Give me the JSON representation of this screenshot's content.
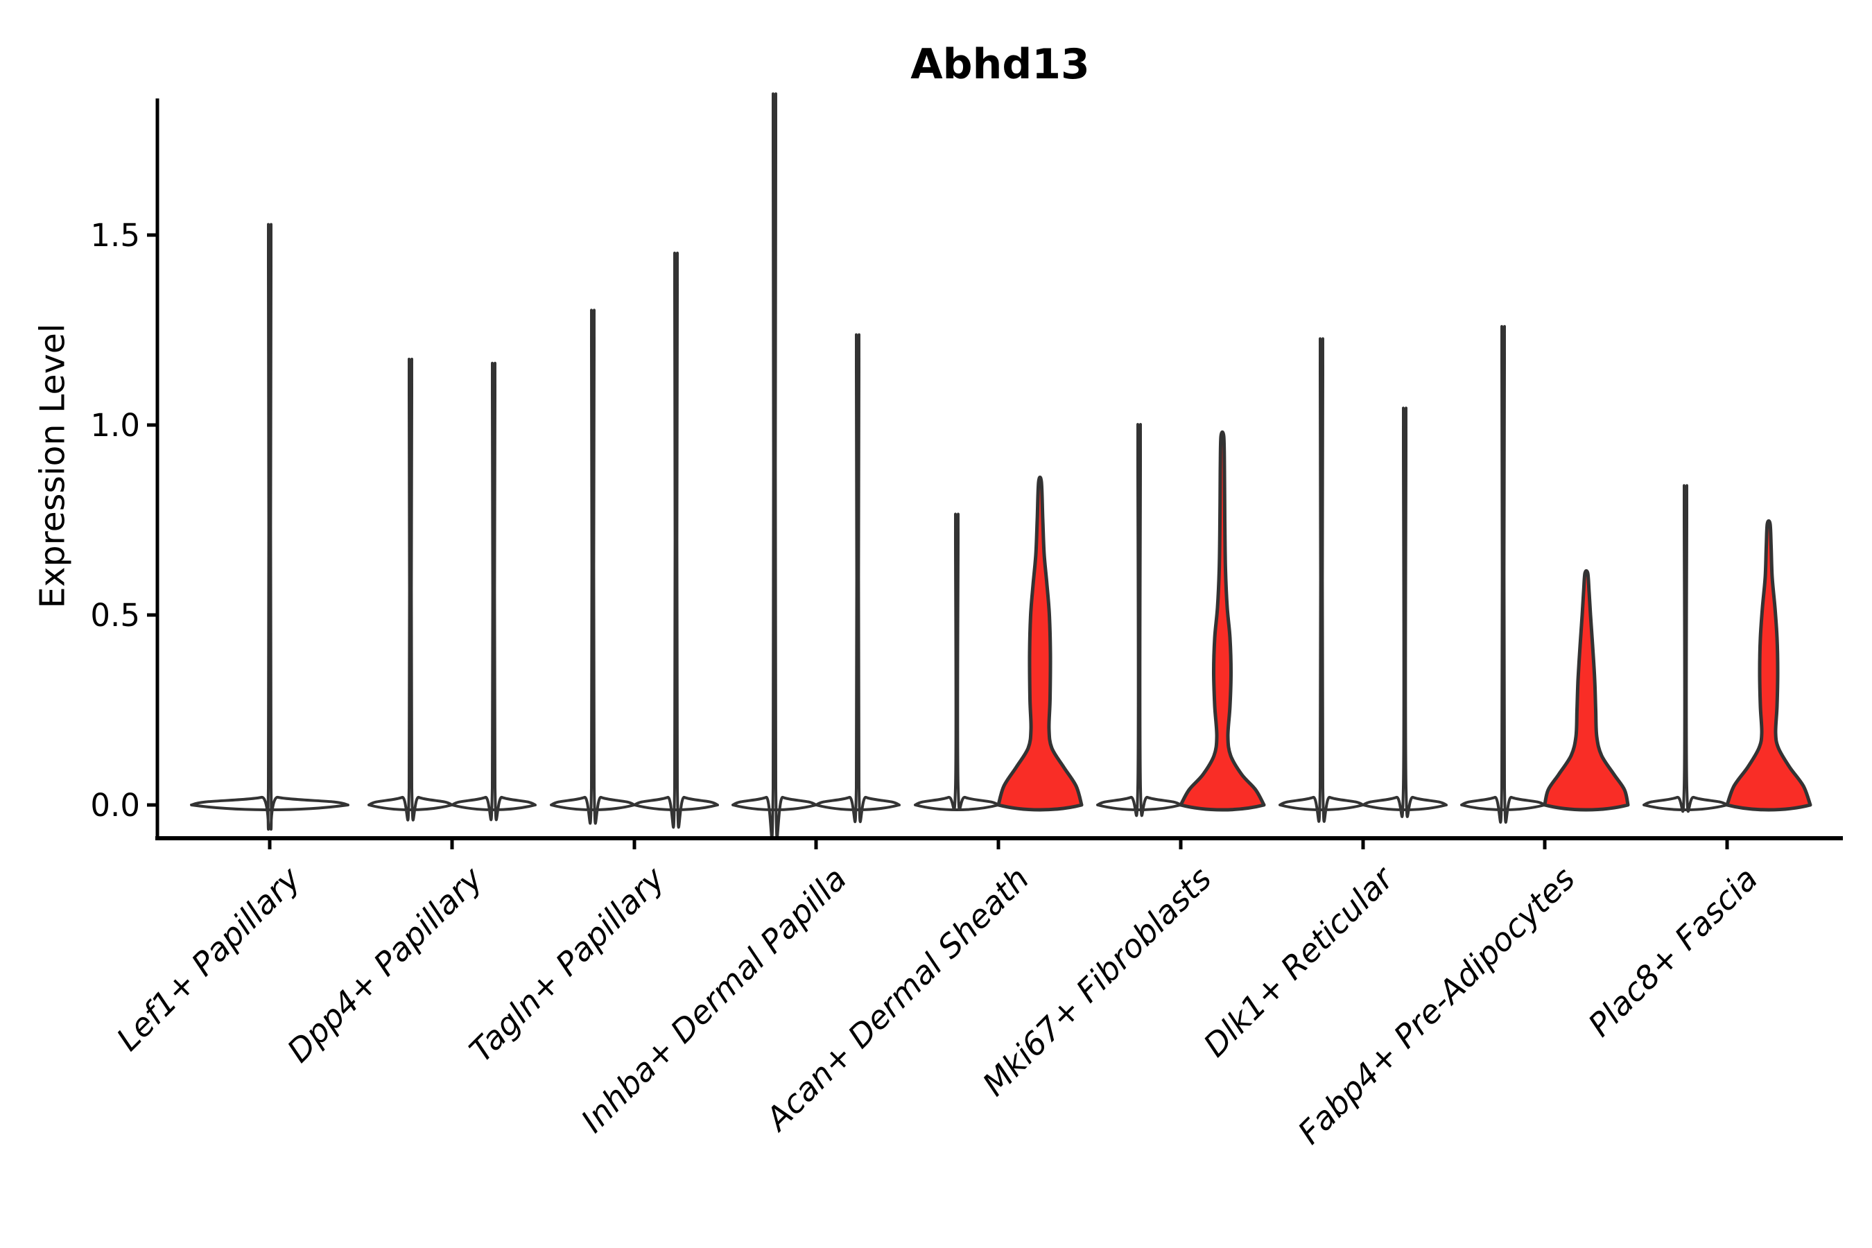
{
  "title": "Abhd13",
  "colors": {
    "red_fill": "#f92d26",
    "white_fill": "#ffffff",
    "violin_outline": "#333333",
    "axis": "#000000",
    "background": "#ffffff"
  },
  "chart_data": {
    "type": "violin",
    "title": "Abhd13",
    "xlabel": "",
    "ylabel": "Expression Level",
    "ylim": [
      -0.09,
      1.85
    ],
    "yticks": [
      0.0,
      0.5,
      1.0,
      1.5
    ],
    "ytick_labels": [
      "0.0",
      "0.5",
      "1.0",
      "1.5"
    ],
    "grid": "off",
    "legend": "none",
    "categories": [
      "Lef1+ Papillary",
      "Dpp4+ Papillary",
      "Tagln+ Papillary",
      "Inhba+ Dermal Papilla",
      "Acan+ Dermal Sheath",
      "Mki67+ Fibroblasts",
      "Dlk1+ Reticular",
      "Fabp4+ Pre-Adipocytes",
      "Plac8+ Fascia"
    ],
    "description": "Violin plot of Abhd13 expression per fibroblast cluster; most cells at 0 giving flat bases with thin spikes to the max expressed value; second violin of some clusters is red-filled with visible density bulges.",
    "violins": [
      {
        "category_index": 0,
        "category": "Lef1+ Papillary",
        "slot": "full",
        "fill": "white",
        "max_expression": 1.44
      },
      {
        "category_index": 1,
        "category": "Dpp4+ Papillary",
        "slot": "left",
        "fill": "white",
        "max_expression": 1.11
      },
      {
        "category_index": 1,
        "category": "Dpp4+ Papillary",
        "slot": "right",
        "fill": "white",
        "max_expression": 1.1
      },
      {
        "category_index": 2,
        "category": "Tagln+ Papillary",
        "slot": "left",
        "fill": "white",
        "max_expression": 1.23
      },
      {
        "category_index": 2,
        "category": "Tagln+ Papillary",
        "slot": "right",
        "fill": "white",
        "max_expression": 1.37
      },
      {
        "category_index": 3,
        "category": "Inhba+ Dermal Papilla",
        "slot": "left",
        "fill": "white",
        "max_expression": 1.76
      },
      {
        "category_index": 3,
        "category": "Inhba+ Dermal Papilla",
        "slot": "right",
        "fill": "white",
        "max_expression": 1.17
      },
      {
        "category_index": 4,
        "category": "Acan+ Dermal Sheath",
        "slot": "left",
        "fill": "white",
        "max_expression": 0.73
      },
      {
        "category_index": 4,
        "category": "Acan+ Dermal Sheath",
        "slot": "right",
        "fill": "red",
        "max_expression": 0.85,
        "shape_profile": [
          [
            0,
            60
          ],
          [
            0.05,
            52
          ],
          [
            0.1,
            34
          ],
          [
            0.15,
            17
          ],
          [
            0.2,
            13
          ],
          [
            0.28,
            14.5
          ],
          [
            0.4,
            15
          ],
          [
            0.5,
            13.5
          ],
          [
            0.58,
            10
          ],
          [
            0.66,
            6
          ],
          [
            0.75,
            4
          ],
          [
            0.85,
            2
          ]
        ]
      },
      {
        "category_index": 5,
        "category": "Mki67+ Fibroblasts",
        "slot": "left",
        "fill": "white",
        "max_expression": 0.95
      },
      {
        "category_index": 5,
        "category": "Mki67+ Fibroblasts",
        "slot": "right",
        "fill": "red",
        "max_expression": 0.97,
        "shape_profile": [
          [
            0,
            60
          ],
          [
            0.04,
            48
          ],
          [
            0.08,
            28
          ],
          [
            0.13,
            12
          ],
          [
            0.18,
            8
          ],
          [
            0.26,
            11
          ],
          [
            0.35,
            12.5
          ],
          [
            0.44,
            11
          ],
          [
            0.52,
            7
          ],
          [
            0.62,
            4.5
          ],
          [
            0.75,
            3.5
          ],
          [
            0.88,
            3
          ],
          [
            0.97,
            2
          ]
        ]
      },
      {
        "category_index": 6,
        "category": "Dlk1+ Reticular",
        "slot": "left",
        "fill": "white",
        "max_expression": 1.16
      },
      {
        "category_index": 6,
        "category": "Dlk1+ Reticular",
        "slot": "right",
        "fill": "white",
        "max_expression": 0.99
      },
      {
        "category_index": 7,
        "category": "Fabp4+ Pre-Adipocytes",
        "slot": "left",
        "fill": "white",
        "max_expression": 1.19
      },
      {
        "category_index": 7,
        "category": "Fabp4+ Pre-Adipocytes",
        "slot": "right",
        "fill": "red",
        "max_expression": 0.61,
        "shape_profile": [
          [
            0,
            60
          ],
          [
            0.04,
            55
          ],
          [
            0.08,
            40
          ],
          [
            0.13,
            22
          ],
          [
            0.18,
            15
          ],
          [
            0.25,
            13.5
          ],
          [
            0.33,
            12
          ],
          [
            0.42,
            9
          ],
          [
            0.5,
            6
          ],
          [
            0.56,
            4
          ],
          [
            0.61,
            2
          ]
        ]
      },
      {
        "category_index": 8,
        "category": "Plac8+ Fascia",
        "slot": "left",
        "fill": "white",
        "max_expression": 0.8
      },
      {
        "category_index": 8,
        "category": "Plac8+ Fascia",
        "slot": "right",
        "fill": "red",
        "max_expression": 0.74,
        "shape_profile": [
          [
            0,
            60
          ],
          [
            0.05,
            50
          ],
          [
            0.1,
            30
          ],
          [
            0.15,
            14
          ],
          [
            0.19,
            10
          ],
          [
            0.26,
            12
          ],
          [
            0.35,
            13
          ],
          [
            0.44,
            12
          ],
          [
            0.52,
            9
          ],
          [
            0.6,
            5
          ],
          [
            0.68,
            3.5
          ],
          [
            0.74,
            2
          ]
        ]
      }
    ]
  }
}
